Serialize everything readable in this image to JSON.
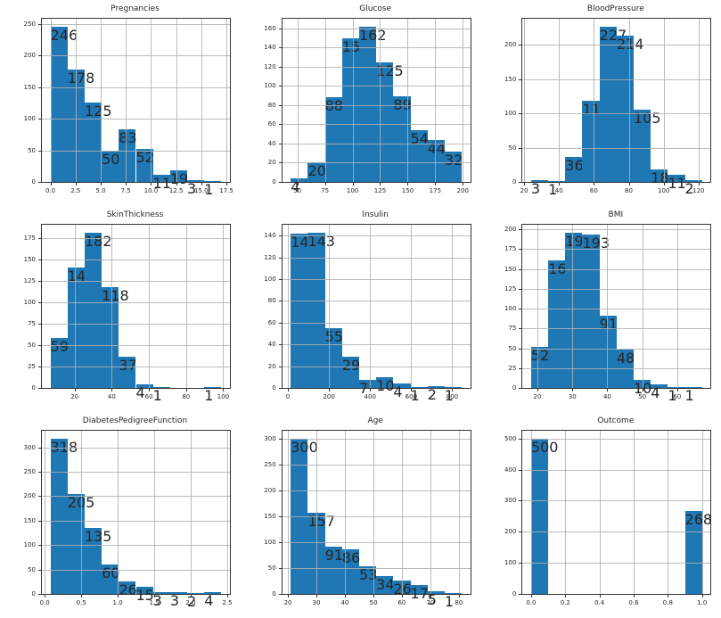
{
  "figure": {
    "background": "#ffffff",
    "bar_color": "#1f77b4",
    "grid_color": "#b0b0b0",
    "spine_color": "#333333",
    "text_color": "#262626"
  },
  "chart_data": [
    {
      "type": "bar",
      "kind": "histogram",
      "title": "Pregnancies",
      "bins": {
        "start": 0,
        "end": 17,
        "count": 10
      },
      "values": [
        246,
        178,
        125,
        50,
        83,
        52,
        11,
        19,
        3,
        1
      ],
      "xlim": [
        -0.85,
        17.85
      ],
      "ylim": [
        0,
        258.3
      ],
      "xtick_values": [
        0,
        2.5,
        5,
        7.5,
        10,
        12.5,
        15,
        17.5
      ],
      "xtick_labels": [
        "0.0",
        "2.5",
        "5.0",
        "7.5",
        "10.0",
        "12.5",
        "15.0",
        "17.5"
      ],
      "ytick_values": [
        0,
        50,
        100,
        150,
        200,
        250
      ],
      "ytick_labels": [
        "0",
        "50",
        "100",
        "150",
        "200",
        "250"
      ],
      "grid": true,
      "legend": null
    },
    {
      "type": "bar",
      "kind": "histogram",
      "title": "Glucose",
      "bins": {
        "start": 44,
        "end": 199,
        "count": 10
      },
      "values": [
        4,
        20,
        88,
        150,
        162,
        125,
        89,
        54,
        44,
        32
      ],
      "xlim": [
        36.25,
        206.75
      ],
      "ylim": [
        0,
        170.1
      ],
      "xtick_values": [
        50,
        75,
        100,
        125,
        150,
        175,
        200
      ],
      "xtick_labels": [
        "50",
        "75",
        "100",
        "125",
        "150",
        "175",
        "200"
      ],
      "ytick_values": [
        0,
        20,
        40,
        60,
        80,
        100,
        120,
        140,
        160
      ],
      "ytick_labels": [
        "0",
        "20",
        "40",
        "60",
        "80",
        "100",
        "120",
        "140",
        "160"
      ],
      "grid": true,
      "legend": null
    },
    {
      "type": "bar",
      "kind": "histogram",
      "title": "BloodPressure",
      "bins": {
        "start": 24,
        "end": 122,
        "count": 10
      },
      "values": [
        3,
        1,
        36,
        119,
        227,
        214,
        105,
        18,
        11,
        2
      ],
      "xlim": [
        19.1,
        126.9
      ],
      "ylim": [
        0,
        238.35
      ],
      "xtick_values": [
        20,
        40,
        60,
        80,
        100,
        120
      ],
      "xtick_labels": [
        "20",
        "40",
        "60",
        "80",
        "100",
        "120"
      ],
      "ytick_values": [
        0,
        50,
        100,
        150,
        200
      ],
      "ytick_labels": [
        "0",
        "50",
        "100",
        "150",
        "200"
      ],
      "grid": true,
      "legend": null
    },
    {
      "type": "bar",
      "kind": "histogram",
      "title": "SkinThickness",
      "bins": {
        "start": 7,
        "end": 99,
        "count": 10
      },
      "values": [
        59,
        141,
        182,
        118,
        37,
        4,
        1,
        0,
        0,
        1
      ],
      "xlim": [
        2.4,
        103.6
      ],
      "ylim": [
        0,
        191.1
      ],
      "xtick_values": [
        20,
        40,
        60,
        80,
        100
      ],
      "xtick_labels": [
        "20",
        "40",
        "60",
        "80",
        "100"
      ],
      "ytick_values": [
        0,
        25,
        50,
        75,
        100,
        125,
        150,
        175
      ],
      "ytick_labels": [
        "0",
        "25",
        "50",
        "75",
        "100",
        "125",
        "150",
        "175"
      ],
      "grid": true,
      "legend": null
    },
    {
      "type": "bar",
      "kind": "histogram",
      "title": "Insulin",
      "bins": {
        "start": 14,
        "end": 846,
        "count": 10
      },
      "values": [
        142,
        143,
        55,
        29,
        7,
        10,
        4,
        1,
        2,
        1
      ],
      "xlim": [
        -27.6,
        887.6
      ],
      "ylim": [
        0,
        150.15
      ],
      "xtick_values": [
        0,
        200,
        400,
        600,
        800
      ],
      "xtick_labels": [
        "0",
        "200",
        "400",
        "600",
        "800"
      ],
      "ytick_values": [
        0,
        20,
        40,
        60,
        80,
        100,
        120,
        140
      ],
      "ytick_labels": [
        "0",
        "20",
        "40",
        "60",
        "80",
        "100",
        "120",
        "140"
      ],
      "grid": true,
      "legend": null
    },
    {
      "type": "bar",
      "kind": "histogram",
      "title": "BMI",
      "bins": {
        "start": 18.2,
        "end": 67.1,
        "count": 10
      },
      "values": [
        52,
        161,
        196,
        193,
        91,
        48,
        10,
        4,
        1,
        1
      ],
      "xlim": [
        15.755,
        69.545
      ],
      "ylim": [
        0,
        205.8
      ],
      "xtick_values": [
        20,
        30,
        40,
        50,
        60
      ],
      "xtick_labels": [
        "20",
        "30",
        "40",
        "50",
        "60"
      ],
      "ytick_values": [
        0,
        25,
        50,
        75,
        100,
        125,
        150,
        175,
        200
      ],
      "ytick_labels": [
        "0",
        "25",
        "50",
        "75",
        "100",
        "125",
        "150",
        "175",
        "200"
      ],
      "grid": true,
      "legend": null
    },
    {
      "type": "bar",
      "kind": "histogram",
      "title": "DiabetesPedigreeFunction",
      "bins": {
        "start": 0.078,
        "end": 2.42,
        "count": 10
      },
      "values": [
        318,
        205,
        135,
        60,
        26,
        15,
        3,
        3,
        2,
        4
      ],
      "xlim": [
        -0.039,
        2.537
      ],
      "ylim": [
        0,
        333.9
      ],
      "xtick_values": [
        0,
        0.5,
        1.0,
        1.5,
        2.0,
        2.5
      ],
      "xtick_labels": [
        "0.0",
        "0.5",
        "1.0",
        "1.5",
        "2.0",
        "2.5"
      ],
      "ytick_values": [
        0,
        50,
        100,
        150,
        200,
        250,
        300
      ],
      "ytick_labels": [
        "0",
        "50",
        "100",
        "150",
        "200",
        "250",
        "300"
      ],
      "grid": true,
      "legend": null
    },
    {
      "type": "bar",
      "kind": "histogram",
      "title": "Age",
      "bins": {
        "start": 21,
        "end": 81,
        "count": 10
      },
      "values": [
        300,
        157,
        91,
        86,
        53,
        34,
        26,
        17,
        5,
        1
      ],
      "xlim": [
        18,
        84
      ],
      "ylim": [
        0,
        315
      ],
      "xtick_values": [
        20,
        30,
        40,
        50,
        60,
        70,
        80
      ],
      "xtick_labels": [
        "20",
        "30",
        "40",
        "50",
        "60",
        "70",
        "80"
      ],
      "ytick_values": [
        0,
        50,
        100,
        150,
        200,
        250,
        300
      ],
      "ytick_labels": [
        "0",
        "50",
        "100",
        "150",
        "200",
        "250",
        "300"
      ],
      "grid": true,
      "legend": null
    },
    {
      "type": "bar",
      "kind": "histogram",
      "title": "Outcome",
      "bins": {
        "start": 0,
        "end": 1,
        "count": 10
      },
      "values": [
        500,
        0,
        0,
        0,
        0,
        0,
        0,
        0,
        0,
        268
      ],
      "xlim": [
        -0.05,
        1.05
      ],
      "ylim": [
        0,
        525
      ],
      "xtick_values": [
        0,
        0.2,
        0.4,
        0.6,
        0.8,
        1.0
      ],
      "xtick_labels": [
        "0.0",
        "0.2",
        "0.4",
        "0.6",
        "0.8",
        "1.0"
      ],
      "ytick_values": [
        0,
        100,
        200,
        300,
        400,
        500
      ],
      "ytick_labels": [
        "0",
        "100",
        "200",
        "300",
        "400",
        "500"
      ],
      "grid": true,
      "legend": null
    }
  ]
}
